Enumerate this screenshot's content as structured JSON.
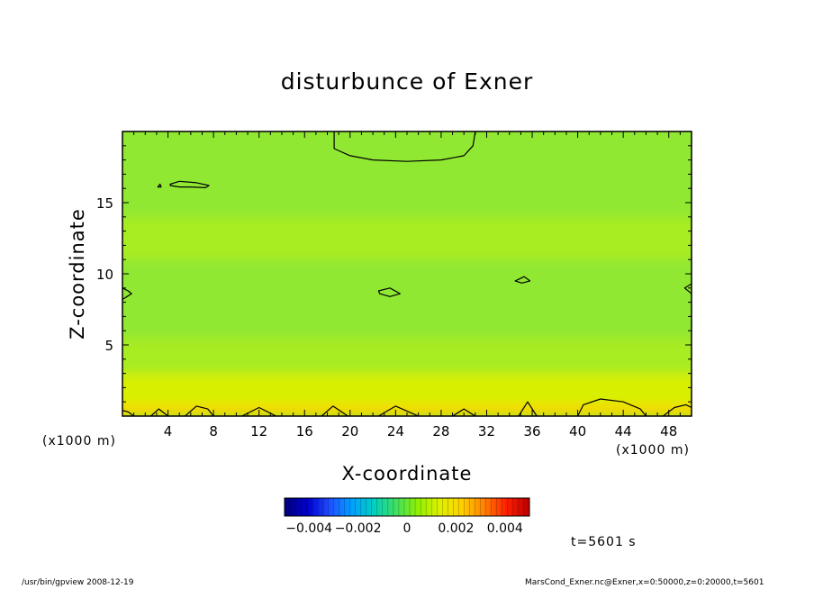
{
  "chart_data": {
    "type": "heatmap",
    "title": "disturbunce of Exner",
    "xlabel": "X-coordinate",
    "ylabel": "Z-coordinate",
    "x_unit": "(x1000 m)",
    "xlim": [
      0,
      50
    ],
    "ylim": [
      0,
      20
    ],
    "x_ticks": [
      4,
      8,
      12,
      16,
      20,
      24,
      28,
      32,
      36,
      40,
      44,
      48
    ],
    "y_ticks": [
      5,
      10,
      15
    ],
    "colorbar": {
      "range": [
        -0.005,
        0.005
      ],
      "tick_values": [
        -0.004,
        -0.002,
        0,
        0.002,
        0.004
      ],
      "tick_labels": [
        "−0.004",
        "−0.002",
        "0",
        "0.002",
        "0.004"
      ],
      "stops": [
        "#000080",
        "#0000d0",
        "#2050ff",
        "#00a0ff",
        "#00d0c0",
        "#40e060",
        "#90f000",
        "#e0f000",
        "#ffd000",
        "#ff8000",
        "#ff2000",
        "#c00000"
      ]
    },
    "fill_colors": {
      "low": "#90e830",
      "mid": "#a8ec22",
      "high": "#d8f000",
      "peak": "#ffd400"
    },
    "bands": [
      {
        "z": [
          0,
          0.8
        ],
        "color": "peak"
      },
      {
        "z": [
          0.8,
          3
        ],
        "color": "high"
      },
      {
        "z": [
          3,
          5.5
        ],
        "color": "mid"
      },
      {
        "z": [
          5.5,
          11
        ],
        "color": "low"
      },
      {
        "z": [
          11,
          14
        ],
        "color": "mid"
      },
      {
        "z": [
          14,
          20
        ],
        "color": "low"
      }
    ],
    "contours": [
      {
        "points": [
          [
            18.6,
            20
          ],
          [
            18.6,
            18.8
          ],
          [
            20,
            18.3
          ],
          [
            22,
            18.0
          ],
          [
            25,
            17.9
          ],
          [
            28,
            18.0
          ],
          [
            30,
            18.3
          ],
          [
            30.8,
            19
          ],
          [
            31,
            20
          ]
        ]
      },
      {
        "points": [
          [
            4.2,
            16.3
          ],
          [
            5,
            16.5
          ],
          [
            6.5,
            16.4
          ],
          [
            7.6,
            16.2
          ],
          [
            7.3,
            16.05
          ],
          [
            6,
            16.1
          ],
          [
            5,
            16.1
          ],
          [
            4.2,
            16.2
          ]
        ],
        "closed": true
      },
      {
        "points": [
          [
            3.1,
            16.1
          ],
          [
            3.3,
            16.3
          ],
          [
            3.4,
            16.1
          ]
        ],
        "closed": true
      },
      {
        "points": [
          [
            22.5,
            8.8
          ],
          [
            23.5,
            9.0
          ],
          [
            24.4,
            8.6
          ],
          [
            23.5,
            8.4
          ],
          [
            22.6,
            8.6
          ]
        ],
        "closed": true
      },
      {
        "points": [
          [
            34.5,
            9.5
          ],
          [
            35.3,
            9.8
          ],
          [
            35.8,
            9.5
          ],
          [
            35.1,
            9.35
          ]
        ],
        "closed": true
      },
      {
        "points": [
          [
            0,
            9.0
          ],
          [
            0.5,
            8.8
          ],
          [
            0.8,
            8.6
          ],
          [
            0.4,
            8.4
          ],
          [
            0,
            8.2
          ]
        ]
      },
      {
        "points": [
          [
            50,
            9.3
          ],
          [
            49.4,
            9.0
          ],
          [
            50,
            8.6
          ]
        ]
      },
      {
        "points": [
          [
            40,
            0
          ],
          [
            40.5,
            0.8
          ],
          [
            42,
            1.2
          ],
          [
            44,
            1.0
          ],
          [
            45.5,
            0.5
          ],
          [
            46,
            0
          ]
        ]
      },
      {
        "points": [
          [
            34.8,
            0
          ],
          [
            35.6,
            1.0
          ],
          [
            36.4,
            0
          ]
        ]
      },
      {
        "points": [
          [
            47.5,
            0
          ],
          [
            48.5,
            0.6
          ],
          [
            49.5,
            0.8
          ],
          [
            50,
            0.6
          ]
        ]
      },
      {
        "points": [
          [
            0,
            0.4
          ],
          [
            0.5,
            0.3
          ],
          [
            1,
            0
          ]
        ]
      },
      {
        "points": [
          [
            2.5,
            0
          ],
          [
            3.2,
            0.5
          ],
          [
            4,
            0
          ]
        ]
      },
      {
        "points": [
          [
            5.5,
            0
          ],
          [
            6.5,
            0.7
          ],
          [
            7.5,
            0.5
          ],
          [
            8,
            0
          ]
        ]
      },
      {
        "points": [
          [
            10.5,
            0
          ],
          [
            12,
            0.6
          ],
          [
            13.5,
            0
          ]
        ]
      },
      {
        "points": [
          [
            17.5,
            0
          ],
          [
            18.5,
            0.7
          ],
          [
            19.8,
            0
          ]
        ]
      },
      {
        "points": [
          [
            22.5,
            0
          ],
          [
            24,
            0.7
          ],
          [
            26,
            0
          ]
        ]
      },
      {
        "points": [
          [
            29,
            0
          ],
          [
            30,
            0.5
          ],
          [
            31,
            0
          ]
        ]
      }
    ]
  },
  "labels": {
    "time": "t=5601 s",
    "footer_left": "/usr/bin/gpview   2008-12-19",
    "footer_right": "MarsCond_Exner.nc@Exner,x=0:50000,z=0:20000,t=5601"
  }
}
